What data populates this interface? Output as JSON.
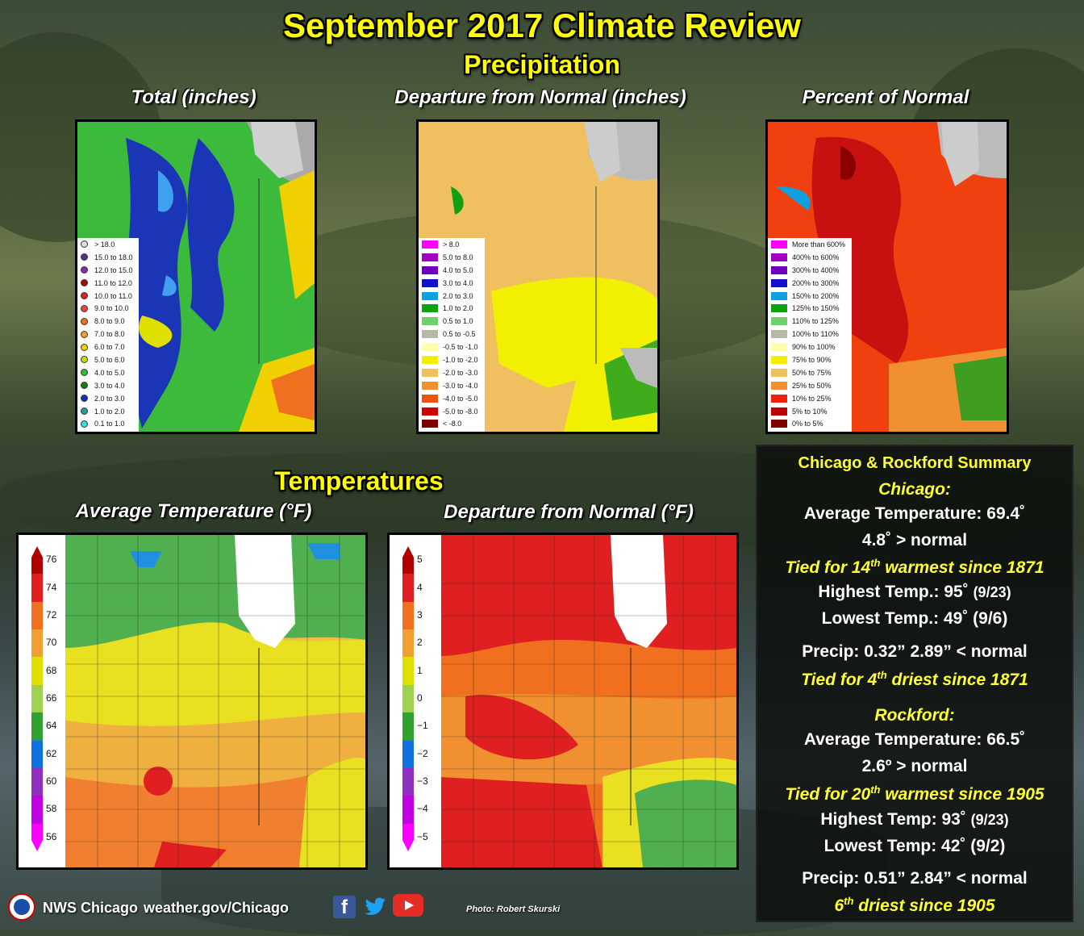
{
  "header": {
    "title": "September 2017 Climate Review",
    "section_precip": "Precipitation",
    "section_temp": "Temperatures"
  },
  "precip_maps": {
    "total": {
      "title": "Total (inches)",
      "legend": [
        {
          "label": "> 18.0",
          "color": "#dddddd"
        },
        {
          "label": "15.0 to 18.0",
          "color": "#5a2a8a"
        },
        {
          "label": "12.0 to 15.0",
          "color": "#8a2aa0"
        },
        {
          "label": "11.0 to 12.0",
          "color": "#b00000"
        },
        {
          "label": "10.0 to 11.0",
          "color": "#e02020"
        },
        {
          "label": "9.0 to 10.0",
          "color": "#f04040"
        },
        {
          "label": "8.0 to 9.0",
          "color": "#f07020"
        },
        {
          "label": "7.0 to 8.0",
          "color": "#f0a030"
        },
        {
          "label": "6.0 to 7.0",
          "color": "#f0d000"
        },
        {
          "label": "5.0 to 6.0",
          "color": "#c0e000"
        },
        {
          "label": "4.0 to 5.0",
          "color": "#30c030"
        },
        {
          "label": "3.0 to 4.0",
          "color": "#108010"
        },
        {
          "label": "2.0 to 3.0",
          "color": "#1030c0"
        },
        {
          "label": "1.0 to 2.0",
          "color": "#20a0a0"
        },
        {
          "label": "0.1 to 1.0",
          "color": "#30e0e0"
        }
      ]
    },
    "departure": {
      "title": "Departure from Normal (inches)",
      "legend": [
        {
          "label": "> 8.0",
          "color": "#ff00ff"
        },
        {
          "label": "5.0 to 8.0",
          "color": "#a000c0"
        },
        {
          "label": "4.0 to 5.0",
          "color": "#7000c0"
        },
        {
          "label": "3.0 to 4.0",
          "color": "#1010d0"
        },
        {
          "label": "2.0 to 3.0",
          "color": "#10a0e0"
        },
        {
          "label": "1.0 to 2.0",
          "color": "#10a010"
        },
        {
          "label": "0.5 to 1.0",
          "color": "#70d070"
        },
        {
          "label": "0.5 to -0.5",
          "color": "#b8b8a8"
        },
        {
          "label": "-0.5 to -1.0",
          "color": "#ffffb0"
        },
        {
          "label": "-1.0 to -2.0",
          "color": "#f0f000"
        },
        {
          "label": "-2.0 to -3.0",
          "color": "#f0c060"
        },
        {
          "label": "-3.0 to -4.0",
          "color": "#f09030"
        },
        {
          "label": "-4.0 to -5.0",
          "color": "#f05010"
        },
        {
          "label": "-5.0 to -8.0",
          "color": "#d00000"
        },
        {
          "label": "< -8.0",
          "color": "#800000"
        }
      ]
    },
    "percent": {
      "title": "Percent of Normal",
      "legend": [
        {
          "label": "More than 600%",
          "color": "#ff00ff"
        },
        {
          "label": "400% to 600%",
          "color": "#a000c0"
        },
        {
          "label": "300% to 400%",
          "color": "#7000c0"
        },
        {
          "label": "200% to 300%",
          "color": "#1010d0"
        },
        {
          "label": "150% to 200%",
          "color": "#10a0e0"
        },
        {
          "label": "125% to 150%",
          "color": "#10a010"
        },
        {
          "label": "110% to 125%",
          "color": "#70d070"
        },
        {
          "label": "100% to 110%",
          "color": "#b8b8a8"
        },
        {
          "label": "90% to 100%",
          "color": "#ffffb0"
        },
        {
          "label": "75% to 90%",
          "color": "#f0f000"
        },
        {
          "label": "50% to 75%",
          "color": "#f0c060"
        },
        {
          "label": "25% to 50%",
          "color": "#f09030"
        },
        {
          "label": "10% to 25%",
          "color": "#f02010"
        },
        {
          "label": "5% to 10%",
          "color": "#c00000"
        },
        {
          "label": "0% to 5%",
          "color": "#800000"
        }
      ]
    }
  },
  "temp_maps": {
    "average": {
      "title": "Average Temperature (°F)",
      "ticks": [
        "76",
        "74",
        "72",
        "70",
        "68",
        "66",
        "64",
        "62",
        "60",
        "58",
        "56"
      ],
      "colors": [
        "#b00000",
        "#e02020",
        "#f07020",
        "#f0a030",
        "#e0e000",
        "#a0d050",
        "#30a030",
        "#1070e0",
        "#9030c0",
        "#c000e0",
        "#ff00ff"
      ]
    },
    "departure": {
      "title": "Departure from Normal (°F)",
      "ticks": [
        "5",
        "4",
        "3",
        "2",
        "1",
        "0",
        "−1",
        "−2",
        "−3",
        "−4",
        "−5"
      ],
      "colors": [
        "#b00000",
        "#e02020",
        "#f07020",
        "#f0a030",
        "#e0e000",
        "#a0d050",
        "#30a030",
        "#1070e0",
        "#9030c0",
        "#c000e0",
        "#ff00ff"
      ]
    }
  },
  "summary": {
    "heading": "Chicago & Rockford Summary",
    "chicago": {
      "name": "Chicago:",
      "avg_temp": "Average Temperature: 69.4˚",
      "departure": "4.8˚ > normal",
      "rank_pre": "Tied for 14",
      "rank_sup": "th",
      "rank_post": " warmest since 1871",
      "high_main": "Highest Temp.: 95˚",
      "high_date": "(9/23)",
      "low": "Lowest Temp.: 49˚ (9/6)",
      "precip": "Precip: 0.32”  2.89” < normal",
      "precip_rank_pre": "Tied for 4",
      "precip_rank_sup": "th",
      "precip_rank_post": " driest since 1871"
    },
    "rockford": {
      "name": "Rockford:",
      "avg_temp": "Average Temperature: 66.5˚",
      "departure": "2.6º > normal",
      "rank_pre": "Tied for 20",
      "rank_sup": "th",
      "rank_post": " warmest since 1905",
      "high_main": "Highest Temp: 93˚",
      "high_date": "(9/23)",
      "low": "Lowest Temp: 42˚ (9/2)",
      "precip": "Precip: 0.51”  2.84” < normal",
      "precip_rank_pre": "6",
      "precip_rank_sup": "th",
      "precip_rank_post": " driest since 1905"
    }
  },
  "footer": {
    "org": "NWS Chicago",
    "url": "weather.gov/Chicago",
    "photo_credit": "Photo: Robert Skurski",
    "social": [
      "facebook-icon",
      "twitter-icon",
      "youtube-icon"
    ]
  }
}
